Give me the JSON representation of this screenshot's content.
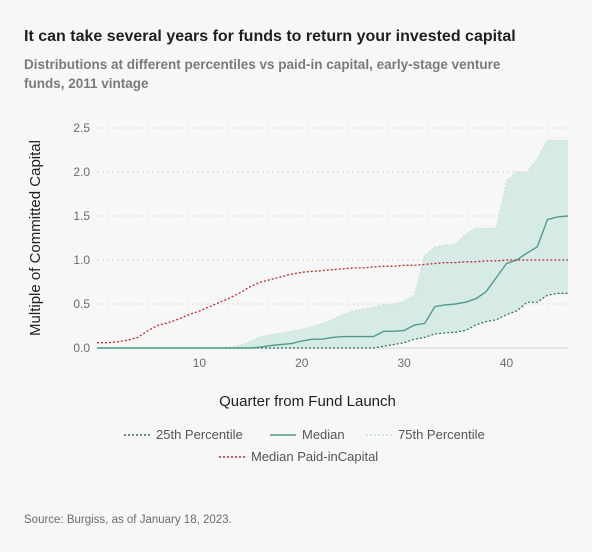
{
  "title": "It can take several years for funds to return your invested capital",
  "subtitle": "Distributions at different percentiles vs paid-in capital, early-stage venture funds, 2011 vintage",
  "source": "Source: Burgiss, as of January 18, 2023.",
  "chart_data": {
    "type": "line",
    "xlabel": "Quarter from Fund Launch",
    "ylabel": "Multiple of Committed Capital",
    "xlim": [
      0,
      46
    ],
    "ylim": [
      0,
      2.5
    ],
    "xticks": [
      10,
      20,
      30,
      40
    ],
    "yticks": [
      "0.0",
      "0.5",
      "1.0",
      "1.5",
      "2.0",
      "2.5"
    ],
    "grid": "horizontal dotted",
    "legend_position": "bottom",
    "colors": {
      "p25": "#2f6a5e",
      "median": "#4f9c8a",
      "p75_fill": "#d6ebe6",
      "p75_line": "#c7e2db",
      "paid_in": "#c0282d",
      "grid": "#d4d4d4",
      "axis_text": "#6b6b6b"
    },
    "x": [
      0,
      1,
      2,
      3,
      4,
      5,
      6,
      7,
      8,
      9,
      10,
      11,
      12,
      13,
      14,
      15,
      16,
      17,
      18,
      19,
      20,
      21,
      22,
      23,
      24,
      25,
      26,
      27,
      28,
      29,
      30,
      31,
      32,
      33,
      34,
      35,
      36,
      37,
      38,
      39,
      40,
      41,
      42,
      43,
      44,
      45,
      46
    ],
    "series": [
      {
        "name": "25th Percentile",
        "key": "p25",
        "style": "dotted",
        "values": [
          0,
          0,
          0,
          0,
          0,
          0,
          0,
          0,
          0,
          0,
          0,
          0,
          0,
          0,
          0,
          0,
          0,
          0,
          0,
          0,
          0,
          0,
          0,
          0,
          0,
          0,
          0,
          0,
          0.02,
          0.04,
          0.06,
          0.1,
          0.12,
          0.16,
          0.17,
          0.18,
          0.2,
          0.26,
          0.3,
          0.32,
          0.38,
          0.42,
          0.52,
          0.52,
          0.6,
          0.62,
          0.62
        ]
      },
      {
        "name": "Median",
        "key": "median",
        "style": "solid",
        "values": [
          0,
          0,
          0,
          0,
          0,
          0,
          0,
          0,
          0,
          0,
          0,
          0,
          0,
          0,
          0,
          0,
          0.01,
          0.03,
          0.04,
          0.05,
          0.08,
          0.1,
          0.1,
          0.12,
          0.13,
          0.13,
          0.13,
          0.13,
          0.19,
          0.19,
          0.2,
          0.26,
          0.28,
          0.47,
          0.49,
          0.5,
          0.52,
          0.56,
          0.64,
          0.8,
          0.96,
          1.0,
          1.08,
          1.15,
          1.46,
          1.49,
          1.5
        ]
      },
      {
        "name": "75th Percentile",
        "key": "p75",
        "style": "dotted-fill",
        "values": [
          0,
          0,
          0,
          0,
          0,
          0,
          0,
          0,
          0,
          0,
          0,
          0,
          0,
          0.01,
          0.03,
          0.07,
          0.13,
          0.15,
          0.17,
          0.19,
          0.21,
          0.24,
          0.28,
          0.32,
          0.38,
          0.42,
          0.44,
          0.46,
          0.49,
          0.5,
          0.53,
          0.6,
          1.05,
          1.15,
          1.17,
          1.18,
          1.29,
          1.36,
          1.36,
          1.36,
          1.9,
          2.0,
          2.0,
          2.15,
          2.36,
          2.36,
          2.36
        ]
      },
      {
        "name": "Median Paid-inCapital",
        "key": "paid_in",
        "style": "dotted",
        "values": [
          0.06,
          0.06,
          0.07,
          0.09,
          0.12,
          0.2,
          0.26,
          0.29,
          0.33,
          0.38,
          0.42,
          0.47,
          0.52,
          0.57,
          0.63,
          0.7,
          0.75,
          0.78,
          0.81,
          0.84,
          0.86,
          0.87,
          0.88,
          0.89,
          0.9,
          0.91,
          0.91,
          0.92,
          0.93,
          0.93,
          0.94,
          0.94,
          0.95,
          0.96,
          0.97,
          0.97,
          0.98,
          0.98,
          0.99,
          0.99,
          1.0,
          1.0,
          1.0,
          1.0,
          1.0,
          1.0,
          1.0
        ]
      }
    ]
  }
}
